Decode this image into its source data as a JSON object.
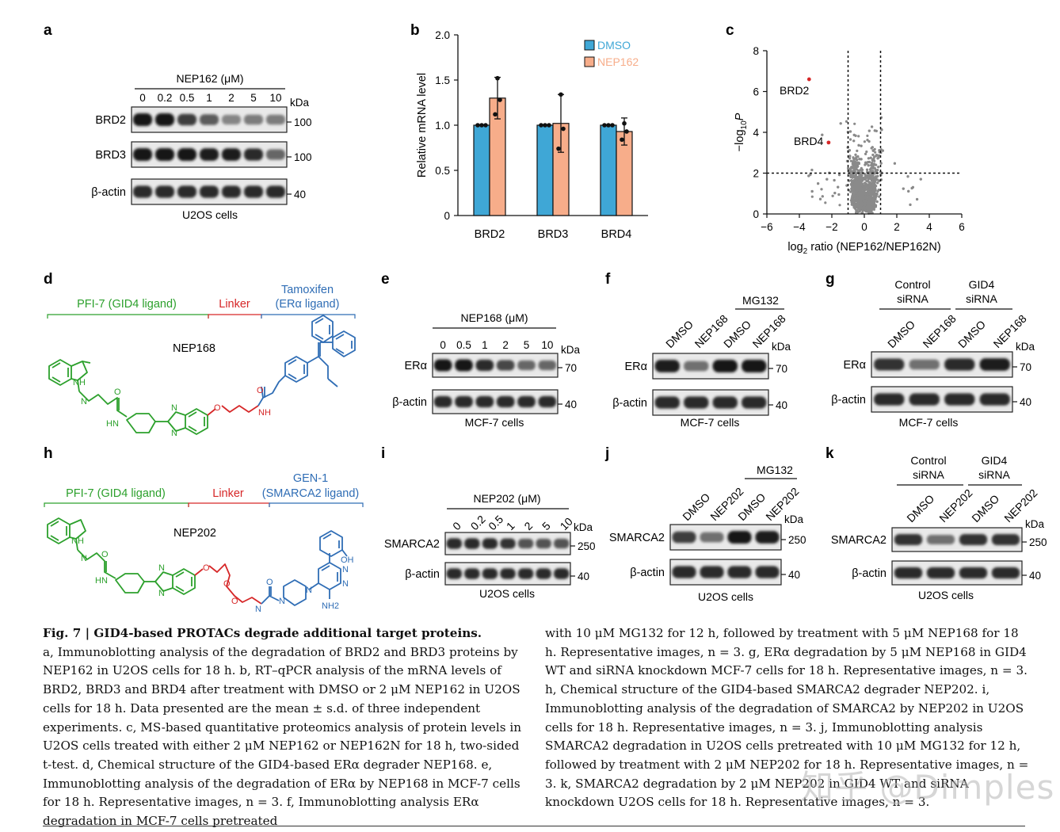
{
  "panels": {
    "a": {
      "letter": "a",
      "header": "NEP162 (μM)",
      "lanes": [
        "0",
        "0.2",
        "0.5",
        "1",
        "2",
        "5",
        "10"
      ],
      "kda": "kDa",
      "rows": [
        {
          "label": "BRD2",
          "mw": "100",
          "intensities": [
            1.0,
            1.0,
            0.8,
            0.65,
            0.45,
            0.5,
            0.5
          ]
        },
        {
          "label": "BRD3",
          "mw": "100",
          "intensities": [
            1.0,
            1.0,
            1.0,
            0.95,
            0.95,
            0.9,
            0.6
          ]
        },
        {
          "label": "β-actin",
          "mw": "40",
          "intensities": [
            0.9,
            0.9,
            0.9,
            0.9,
            0.9,
            0.9,
            0.9
          ]
        }
      ],
      "footer": "U2OS cells"
    },
    "b": {
      "letter": "b"
    },
    "c": {
      "letter": "c"
    },
    "d": {
      "letter": "d",
      "green_label": "PFI-7 (GID4 ligand)",
      "red_label": "Linker",
      "blue_label_1": "Tamoxifen",
      "blue_label_2": "(ERα ligand)",
      "compound": "NEP168",
      "atoms": [
        "NH",
        "N",
        "O",
        "HN",
        "N",
        "N",
        "O",
        "O",
        "NH"
      ]
    },
    "e": {
      "letter": "e",
      "header": "NEP168 (μM)",
      "lanes": [
        "0",
        "0.5",
        "1",
        "2",
        "5",
        "10"
      ],
      "kda": "kDa",
      "rows": [
        {
          "label": "ERα",
          "mw": "70",
          "intensities": [
            1.0,
            1.0,
            0.9,
            0.75,
            0.6,
            0.6
          ]
        },
        {
          "label": "β-actin",
          "mw": "40",
          "intensities": [
            0.9,
            0.9,
            0.9,
            0.9,
            0.9,
            0.9
          ]
        }
      ],
      "footer": "MCF-7 cells"
    },
    "f": {
      "letter": "f",
      "group": "MG132",
      "lanes": [
        "DMSO",
        "NEP168",
        "DMSO",
        "NEP168"
      ],
      "kda": "kDa",
      "rows": [
        {
          "label": "ERα",
          "mw": "70",
          "intensities": [
            0.95,
            0.55,
            1.0,
            1.0
          ]
        },
        {
          "label": "β-actin",
          "mw": "40",
          "intensities": [
            0.9,
            0.9,
            0.9,
            0.9
          ]
        }
      ],
      "footer": "MCF-7 cells"
    },
    "g": {
      "letter": "g",
      "group1_1": "Control",
      "group1_2": "siRNA",
      "group2_1": "GID4",
      "group2_2": "siRNA",
      "lanes": [
        "DMSO",
        "NEP168",
        "DMSO",
        "NEP168"
      ],
      "kda": "kDa",
      "rows": [
        {
          "label": "ERα",
          "mw": "70",
          "intensities": [
            0.85,
            0.55,
            0.9,
            0.95
          ]
        },
        {
          "label": "β-actin",
          "mw": "40",
          "intensities": [
            0.9,
            0.9,
            0.9,
            0.9
          ]
        }
      ],
      "footer": "MCF-7 cells"
    },
    "h": {
      "letter": "h",
      "green_label": "PFI-7 (GID4 ligand)",
      "red_label": "Linker",
      "blue_label_1": "GEN-1",
      "blue_label_2": "(SMARCA2 ligand)",
      "compound": "NEP202",
      "atoms": [
        "NH",
        "N",
        "O",
        "HN",
        "N",
        "N",
        "O",
        "O",
        "O",
        "N",
        "O",
        "N",
        "N",
        "N",
        "N",
        "NH2",
        "OH"
      ]
    },
    "i": {
      "letter": "i",
      "header": "NEP202 (μM)",
      "lanes": [
        "0",
        "0.2",
        "0.5",
        "1",
        "2",
        "5",
        "10"
      ],
      "kda": "kDa",
      "rows": [
        {
          "label": "SMARCA2",
          "mw": "250",
          "intensities": [
            0.9,
            0.9,
            0.9,
            0.85,
            0.7,
            0.7,
            0.7
          ]
        },
        {
          "label": "β-actin",
          "mw": "40",
          "intensities": [
            0.9,
            0.9,
            0.9,
            0.9,
            0.9,
            0.9,
            0.9
          ]
        }
      ],
      "footer": "U2OS cells"
    },
    "j": {
      "letter": "j",
      "group": "MG132",
      "lanes": [
        "DMSO",
        "NEP202",
        "DMSO",
        "NEP202"
      ],
      "kda": "kDa",
      "rows": [
        {
          "label": "SMARCA2",
          "mw": "250",
          "intensities": [
            0.8,
            0.55,
            1.0,
            0.95
          ]
        },
        {
          "label": "β-actin",
          "mw": "40",
          "intensities": [
            0.9,
            0.9,
            0.9,
            0.9
          ]
        }
      ],
      "footer": "U2OS cells"
    },
    "k": {
      "letter": "k",
      "group1_1": "Control",
      "group1_2": "siRNA",
      "group2_1": "GID4",
      "group2_2": "siRNA",
      "lanes": [
        "DMSO",
        "NEP202",
        "DMSO",
        "NEP202"
      ],
      "kda": "kDa",
      "rows": [
        {
          "label": "SMARCA2",
          "mw": "250",
          "intensities": [
            0.85,
            0.55,
            0.85,
            0.85
          ]
        },
        {
          "label": "β-actin",
          "mw": "40",
          "intensities": [
            0.9,
            0.9,
            0.9,
            0.9
          ]
        }
      ],
      "footer": "U2OS cells"
    }
  },
  "chart_data": [
    {
      "type": "bar",
      "panel": "b",
      "categories": [
        "BRD2",
        "BRD3",
        "BRD4"
      ],
      "series": [
        {
          "name": "DMSO",
          "color": "#3fa7d6",
          "values": [
            1.0,
            1.0,
            1.0
          ],
          "sd": [
            0,
            0,
            0
          ],
          "points": [
            [
              1.0,
              1.0,
              1.0
            ],
            [
              1.0,
              1.0,
              1.0
            ],
            [
              1.0,
              1.0,
              1.0
            ]
          ]
        },
        {
          "name": "NEP162",
          "color": "#f7ad8a",
          "values": [
            1.3,
            1.02,
            0.93
          ],
          "sd": [
            0.23,
            0.32,
            0.15
          ],
          "points": [
            [
              1.52,
              1.28,
              1.12
            ],
            [
              1.34,
              0.96,
              0.74
            ],
            [
              1.02,
              0.93,
              0.84
            ]
          ]
        }
      ],
      "ylabel": "Relative mRNA level",
      "yticks": [
        "0",
        "0.5",
        "1.0",
        "1.5",
        "2.0"
      ],
      "ylim": [
        0,
        2.0
      ],
      "legend": "top-right"
    },
    {
      "type": "scatter",
      "panel": "c",
      "title": "",
      "xlabel_pre": "log",
      "xlabel_sub": "2",
      "xlabel_post": " ratio (NEP162/NEP162N)",
      "ylabel_pre": "−log",
      "ylabel_sub": "10",
      "ylabel_post": "P",
      "xticks": [
        "−6",
        "−4",
        "−2",
        "0",
        "2",
        "4",
        "6"
      ],
      "yticks": [
        "0",
        "2",
        "4",
        "6",
        "8"
      ],
      "xlim": [
        -6,
        6
      ],
      "ylim": [
        0,
        8
      ],
      "thresholds": {
        "x": [
          -1,
          1
        ],
        "y": 2
      },
      "highlighted": [
        {
          "name": "BRD2",
          "x": -3.4,
          "y": 6.6
        },
        {
          "name": "BRD4",
          "x": -2.2,
          "y": 3.5
        }
      ],
      "point_color": "#8a8a8a"
    }
  ],
  "caption": {
    "title": "Fig. 7 | GID4-based PROTACs degrade additional target proteins.",
    "left": "a, Immunoblotting analysis of the degradation of BRD2 and BRD3 proteins by NEP162 in U2OS cells for 18 h. b, RT–qPCR analysis of the mRNA levels of BRD2, BRD3 and BRD4 after treatment with DMSO or 2 μM NEP162 in U2OS cells for 18 h. Data presented are the mean ± s.d. of three independent experiments. c, MS-based quantitative proteomics analysis of protein levels in U2OS cells treated with either 2 μM NEP162 or NEP162N for 18 h, two-sided t-test. d, Chemical structure of the GID4-based ERα degrader NEP168. e, Immunoblotting analysis of the degradation of ERα by NEP168 in MCF-7 cells for 18 h. Representative images, n = 3. f, Immunoblotting analysis ERα degradation in MCF-7 cells pretreated",
    "right": "with 10 μM MG132 for 12 h, followed by treatment with 5 μM NEP168 for 18 h. Representative images, n = 3. g, ERα degradation by 5 μM NEP168 in GID4 WT and siRNA knockdown MCF-7 cells for 18 h. Representative images, n = 3. h, Chemical structure of the GID4-based SMARCA2 degrader NEP202. i, Immunoblotting analysis of the degradation of SMARCA2 by NEP202 in U2OS cells for 18 h. Representative images, n = 3. j, Immunoblotting analysis SMARCA2 degradation in U2OS cells pretreated with 10 μM MG132 for 12 h, followed by treatment with 2 μM NEP202 for 18 h. Representative images, n = 3. k, SMARCA2 degradation by 2 μM NEP202 in GID4 WT and siRNA knockdown U2OS cells for 18 h. Representative images, n = 3."
  },
  "watermark": "知乎 @Dimples"
}
